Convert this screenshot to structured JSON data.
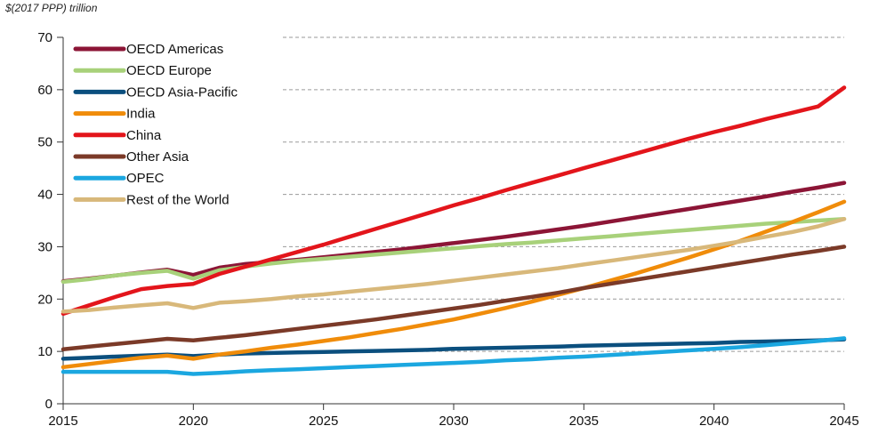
{
  "chart_data": {
    "type": "line",
    "unit_label": "$(2017 PPP) trillion",
    "xlim": [
      2015,
      2045
    ],
    "ylim": [
      0,
      70
    ],
    "x_ticks": [
      2015,
      2020,
      2025,
      2030,
      2035,
      2040,
      2045
    ],
    "y_ticks": [
      0,
      10,
      20,
      30,
      40,
      50,
      60,
      70
    ],
    "grid": "horizontal dashed",
    "legend_position": "top-left",
    "x": [
      2015,
      2016,
      2017,
      2018,
      2019,
      2020,
      2021,
      2022,
      2023,
      2024,
      2025,
      2026,
      2027,
      2028,
      2029,
      2030,
      2031,
      2032,
      2033,
      2034,
      2035,
      2036,
      2037,
      2038,
      2039,
      2040,
      2041,
      2042,
      2043,
      2044,
      2045
    ],
    "series": [
      {
        "name": "OECD Americas",
        "color": "#8c1536",
        "values": [
          23.4,
          23.9,
          24.5,
          25.1,
          25.6,
          24.6,
          26.0,
          26.7,
          27.1,
          27.5,
          28.0,
          28.5,
          29.0,
          29.5,
          30.1,
          30.7,
          31.3,
          31.9,
          32.6,
          33.3,
          34.0,
          34.8,
          35.6,
          36.4,
          37.2,
          38.0,
          38.8,
          39.6,
          40.5,
          41.3,
          42.2
        ]
      },
      {
        "name": "OECD Europe",
        "color": "#a8d17a",
        "values": [
          23.3,
          23.8,
          24.5,
          25.0,
          25.4,
          23.9,
          25.5,
          26.2,
          26.8,
          27.3,
          27.7,
          28.1,
          28.5,
          28.9,
          29.3,
          29.7,
          30.1,
          30.5,
          30.8,
          31.2,
          31.6,
          32.0,
          32.4,
          32.8,
          33.2,
          33.6,
          34.0,
          34.4,
          34.7,
          35.0,
          35.3
        ]
      },
      {
        "name": "OECD Asia-Pacific",
        "color": "#0b4f7e",
        "values": [
          8.6,
          8.8,
          9.0,
          9.2,
          9.4,
          9.1,
          9.4,
          9.6,
          9.7,
          9.8,
          9.9,
          10.0,
          10.1,
          10.2,
          10.3,
          10.5,
          10.6,
          10.7,
          10.8,
          10.9,
          11.1,
          11.2,
          11.3,
          11.4,
          11.5,
          11.6,
          11.8,
          11.9,
          12.0,
          12.1,
          12.3
        ]
      },
      {
        "name": "India",
        "color": "#f08c0a",
        "values": [
          7.0,
          7.6,
          8.2,
          8.8,
          9.2,
          8.6,
          9.4,
          10.0,
          10.7,
          11.3,
          12.0,
          12.7,
          13.5,
          14.3,
          15.2,
          16.1,
          17.2,
          18.3,
          19.5,
          20.8,
          22.1,
          23.5,
          24.9,
          26.4,
          27.9,
          29.5,
          31.1,
          32.9,
          34.7,
          36.6,
          38.6
        ]
      },
      {
        "name": "China",
        "color": "#e3151b",
        "values": [
          17.2,
          18.8,
          20.4,
          21.9,
          22.5,
          22.9,
          24.8,
          26.2,
          27.6,
          29.0,
          30.4,
          31.9,
          33.4,
          34.9,
          36.4,
          37.9,
          39.3,
          40.8,
          42.2,
          43.6,
          45.0,
          46.4,
          47.8,
          49.2,
          50.6,
          51.9,
          53.1,
          54.4,
          55.6,
          56.8,
          60.4
        ]
      },
      {
        "name": "Other Asia",
        "color": "#7b3a28",
        "values": [
          10.4,
          10.9,
          11.4,
          11.9,
          12.4,
          12.1,
          12.6,
          13.1,
          13.7,
          14.3,
          14.9,
          15.5,
          16.1,
          16.8,
          17.5,
          18.2,
          18.9,
          19.7,
          20.4,
          21.2,
          22.1,
          22.9,
          23.7,
          24.5,
          25.3,
          26.1,
          26.9,
          27.7,
          28.5,
          29.2,
          30.0
        ]
      },
      {
        "name": "OPEC",
        "color": "#1ba7e0",
        "values": [
          6.1,
          6.1,
          6.1,
          6.1,
          6.1,
          5.7,
          5.9,
          6.2,
          6.4,
          6.6,
          6.8,
          7.0,
          7.2,
          7.4,
          7.6,
          7.8,
          8.0,
          8.3,
          8.5,
          8.8,
          9.0,
          9.3,
          9.6,
          9.9,
          10.2,
          10.5,
          10.8,
          11.2,
          11.6,
          12.0,
          12.5
        ]
      },
      {
        "name": "Rest of the World",
        "color": "#d8b87a",
        "values": [
          17.6,
          17.9,
          18.4,
          18.8,
          19.2,
          18.3,
          19.3,
          19.6,
          20.0,
          20.5,
          20.9,
          21.4,
          21.9,
          22.4,
          22.9,
          23.5,
          24.1,
          24.7,
          25.3,
          25.9,
          26.6,
          27.3,
          28.0,
          28.7,
          29.4,
          30.2,
          31.0,
          31.9,
          32.8,
          33.9,
          35.3
        ]
      }
    ]
  }
}
